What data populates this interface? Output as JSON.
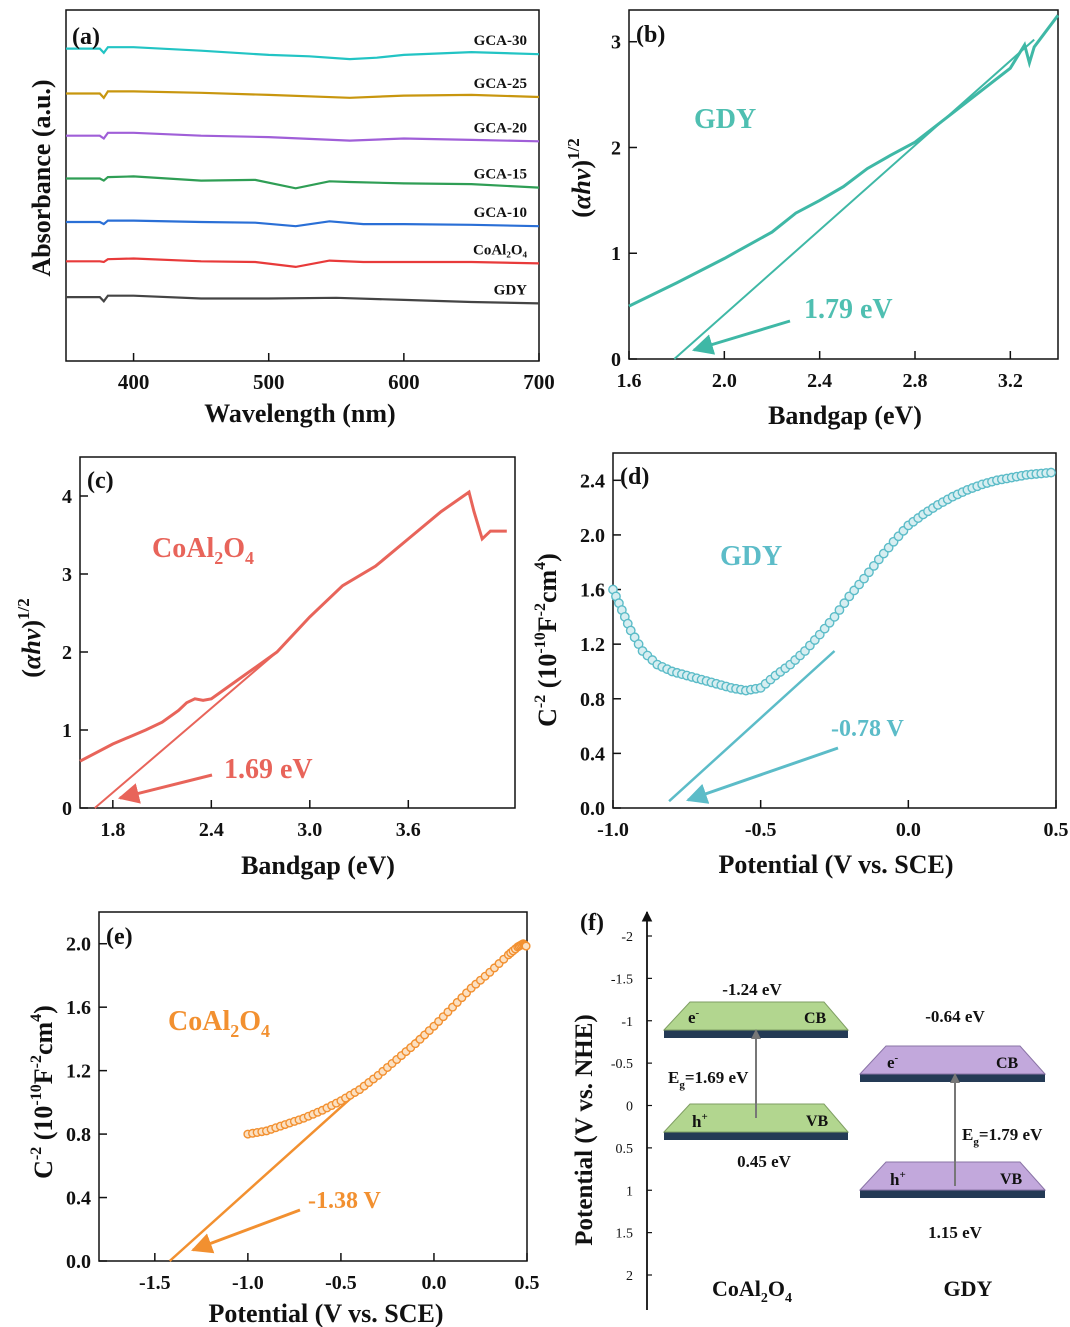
{
  "figure": {
    "panels": {
      "a": {
        "letter": "(a)",
        "xlabel": "Wavelength (nm)",
        "ylabel": "Absorbance (a.u.)"
      },
      "b": {
        "letter": "(b)",
        "xlabel": "Bandgap (eV)",
        "ylabel_pre": "(",
        "ylabel_sym": "αhν",
        "ylabel_post": ")",
        "ylabel_sup": "1/2",
        "inlabel": "GDY",
        "annotation": "1.79 eV"
      },
      "c": {
        "letter": "(c)",
        "xlabel": "Bandgap (eV)",
        "ylabel_pre": "(",
        "ylabel_sym": "αhν",
        "ylabel_post": ")",
        "ylabel_sup": "1/2",
        "inlabel_main": "CoAl",
        "inlabel_sub1": "2",
        "inlabel_mid": "O",
        "inlabel_sub2": "4",
        "annotation": "1.69 eV"
      },
      "d": {
        "letter": "(d)",
        "xlabel": "Potential (V vs. SCE)",
        "ylabel_a": "C",
        "ylabel_a_sup": "-2",
        "ylabel_b": " (10",
        "ylabel_b_sup": "-10",
        "ylabel_c": "F",
        "ylabel_c_sup": "-2",
        "ylabel_d": "cm",
        "ylabel_d_sup": "4",
        "ylabel_e": ")",
        "inlabel": "GDY",
        "annotation": "-0.78 V"
      },
      "e": {
        "letter": "(e)",
        "xlabel": "Potential (V vs. SCE)",
        "ylabel_a": "C",
        "ylabel_a_sup": "-2",
        "ylabel_b": " (10",
        "ylabel_b_sup": "-10",
        "ylabel_c": "F",
        "ylabel_c_sup": "-2",
        "ylabel_d": "cm",
        "ylabel_d_sup": "4",
        "ylabel_e": ")",
        "inlabel_main": "CoAl",
        "inlabel_sub1": "2",
        "inlabel_mid": "O",
        "inlabel_sub2": "4",
        "annotation": "-1.38 V"
      },
      "f": {
        "letter": "(f)",
        "ylabel": "Potential (V vs. NHE)",
        "left": {
          "name_main": "CoAl",
          "name_sub1": "2",
          "name_mid": "O",
          "name_sub2": "4",
          "cb_value": "-1.24 eV",
          "vb_value": "0.45 eV",
          "cb_label": "CB",
          "vb_label": "VB",
          "e_label": "e",
          "e_sup": "-",
          "h_label": "h",
          "h_sup": "+",
          "eg_label": "E",
          "eg_sub": "g",
          "eg_value": "=1.69 eV"
        },
        "right": {
          "name": "GDY",
          "cb_value": "-0.64 eV",
          "vb_value": "1.15 eV",
          "cb_label": "CB",
          "vb_label": "VB",
          "e_label": "e",
          "e_sup": "-",
          "h_label": "h",
          "h_sup": "+",
          "eg_label": "E",
          "eg_sub": "g",
          "eg_value": "=1.79 eV"
        }
      }
    }
  },
  "chart_data": [
    {
      "type": "line",
      "panel": "a",
      "xlabel": "Wavelength (nm)",
      "ylabel": "Absorbance (a.u.)",
      "xlim": [
        350,
        700
      ],
      "xticks": [
        400,
        500,
        600,
        700
      ],
      "yticks": [],
      "series_style": "stacked curves, offset vertically",
      "series": [
        {
          "name": "GCA-30",
          "color": "#22c4c4",
          "x": [
            350,
            375,
            378,
            381,
            400,
            450,
            500,
            530,
            560,
            580,
            600,
            650,
            700
          ],
          "y": [
            5.45,
            5.45,
            5.39,
            5.47,
            5.47,
            5.42,
            5.36,
            5.34,
            5.3,
            5.32,
            5.36,
            5.4,
            5.37
          ]
        },
        {
          "name": "GCA-25",
          "color": "#c8960e",
          "x": [
            350,
            375,
            378,
            381,
            400,
            450,
            500,
            560,
            600,
            650,
            700
          ],
          "y": [
            4.81,
            4.81,
            4.75,
            4.84,
            4.84,
            4.82,
            4.79,
            4.75,
            4.78,
            4.79,
            4.76
          ]
        },
        {
          "name": "GCA-20",
          "color": "#a05fd8",
          "x": [
            350,
            375,
            378,
            381,
            400,
            450,
            500,
            560,
            600,
            650,
            700
          ],
          "y": [
            4.21,
            4.21,
            4.17,
            4.25,
            4.25,
            4.21,
            4.19,
            4.14,
            4.17,
            4.15,
            4.13
          ]
        },
        {
          "name": "GCA-15",
          "color": "#2f9e55",
          "x": [
            350,
            375,
            378,
            381,
            400,
            450,
            490,
            520,
            545,
            560,
            600,
            650,
            700
          ],
          "y": [
            3.6,
            3.6,
            3.57,
            3.62,
            3.63,
            3.57,
            3.58,
            3.46,
            3.56,
            3.55,
            3.53,
            3.52,
            3.47
          ]
        },
        {
          "name": "GCA-10",
          "color": "#2a6fd6",
          "x": [
            350,
            375,
            378,
            381,
            400,
            450,
            490,
            520,
            545,
            570,
            600,
            650,
            700
          ],
          "y": [
            2.98,
            2.98,
            2.95,
            3.0,
            3.0,
            2.98,
            2.97,
            2.92,
            2.99,
            2.95,
            2.95,
            2.94,
            2.92
          ]
        },
        {
          "name": "CoAl₂O₄",
          "color": "#e83a3a",
          "x": [
            350,
            375,
            378,
            381,
            400,
            450,
            490,
            520,
            545,
            570,
            600,
            650,
            700
          ],
          "y": [
            2.42,
            2.42,
            2.41,
            2.45,
            2.46,
            2.42,
            2.41,
            2.34,
            2.43,
            2.41,
            2.41,
            2.41,
            2.39
          ]
        },
        {
          "name": "GDY",
          "color": "#444444",
          "x": [
            350,
            375,
            378,
            381,
            400,
            450,
            500,
            550,
            600,
            650,
            700
          ],
          "y": [
            1.91,
            1.91,
            1.85,
            1.93,
            1.93,
            1.89,
            1.89,
            1.9,
            1.87,
            1.84,
            1.82
          ]
        }
      ]
    },
    {
      "type": "line",
      "panel": "b",
      "xlabel": "Bandgap (eV)",
      "ylim": [
        0,
        3.3
      ],
      "xlim": [
        1.6,
        3.4
      ],
      "xticks": [
        1.6,
        2.0,
        2.4,
        2.8,
        3.2
      ],
      "yticks": [
        0,
        1,
        2,
        3
      ],
      "series": [
        {
          "name": "GDY",
          "color": "#3fb8a6",
          "x": [
            1.6,
            1.8,
            2.0,
            2.2,
            2.3,
            2.4,
            2.5,
            2.6,
            2.7,
            2.8,
            3.0,
            3.2,
            3.26,
            3.28,
            3.3,
            3.4
          ],
          "y": [
            0.5,
            0.72,
            0.95,
            1.2,
            1.38,
            1.5,
            1.63,
            1.8,
            1.93,
            2.05,
            2.4,
            2.75,
            2.97,
            2.8,
            2.95,
            3.25
          ]
        }
      ],
      "tangent": {
        "x": [
          1.79,
          3.3
        ],
        "y": [
          0,
          3.02
        ]
      },
      "annotation": {
        "text": "1.79 eV",
        "x": 1.79
      }
    },
    {
      "type": "line",
      "panel": "c",
      "xlabel": "Bandgap (eV)",
      "ylim": [
        0,
        4.5
      ],
      "xlim": [
        1.6,
        4.25
      ],
      "xticks": [
        1.8,
        2.4,
        3.0,
        3.6
      ],
      "yticks": [
        0,
        1,
        2,
        3,
        4
      ],
      "series": [
        {
          "name": "CoAl₂O₄",
          "color": "#e8645a",
          "x": [
            1.6,
            1.8,
            2.0,
            2.1,
            2.2,
            2.25,
            2.3,
            2.35,
            2.4,
            2.5,
            2.6,
            2.8,
            3.0,
            3.2,
            3.4,
            3.6,
            3.8,
            3.97,
            4.0,
            4.05,
            4.1,
            4.2
          ],
          "y": [
            0.6,
            0.82,
            1.0,
            1.1,
            1.25,
            1.35,
            1.4,
            1.38,
            1.4,
            1.55,
            1.7,
            2.0,
            2.45,
            2.85,
            3.1,
            3.45,
            3.8,
            4.05,
            3.8,
            3.45,
            3.55,
            3.55
          ]
        }
      ],
      "tangent": {
        "x": [
          1.69,
          2.8
        ],
        "y": [
          0,
          2.0
        ]
      },
      "annotation": {
        "text": "1.69 eV",
        "x": 1.69
      }
    },
    {
      "type": "scatter",
      "panel": "d",
      "xlabel": "Potential (V vs. SCE)",
      "xlim": [
        -1.0,
        0.5
      ],
      "ylim": [
        0,
        2.6
      ],
      "xticks": [
        -1.0,
        -0.5,
        0.0,
        0.5
      ],
      "yticks": [
        0.0,
        0.4,
        0.8,
        1.2,
        1.6,
        2.0,
        2.4
      ],
      "series": [
        {
          "name": "GDY",
          "color": "#5cbcc8",
          "x": [
            -1.0,
            -0.97,
            -0.94,
            -0.9,
            -0.85,
            -0.8,
            -0.75,
            -0.7,
            -0.65,
            -0.6,
            -0.55,
            -0.5,
            -0.45,
            -0.4,
            -0.35,
            -0.3,
            -0.25,
            -0.2,
            -0.15,
            -0.1,
            -0.05,
            0.0,
            0.05,
            0.1,
            0.15,
            0.2,
            0.25,
            0.3,
            0.35,
            0.4,
            0.45,
            0.5
          ],
          "y": [
            1.6,
            1.45,
            1.3,
            1.15,
            1.05,
            1.0,
            0.97,
            0.94,
            0.91,
            0.88,
            0.86,
            0.88,
            0.97,
            1.05,
            1.15,
            1.27,
            1.4,
            1.55,
            1.68,
            1.82,
            1.95,
            2.07,
            2.15,
            2.22,
            2.28,
            2.33,
            2.37,
            2.4,
            2.42,
            2.44,
            2.45,
            2.46
          ]
        }
      ],
      "tangent": {
        "x": [
          -0.81,
          -0.25
        ],
        "y": [
          0.05,
          1.15
        ]
      },
      "annotation": {
        "text": "-0.78 V",
        "x": -0.78
      }
    },
    {
      "type": "scatter",
      "panel": "e",
      "xlabel": "Potential (V vs. SCE)",
      "xlim": [
        -1.8,
        0.5
      ],
      "ylim": [
        0,
        2.2
      ],
      "xticks": [
        -1.5,
        -1.0,
        -0.5,
        0.0,
        0.5
      ],
      "yticks": [
        0.0,
        0.4,
        0.8,
        1.2,
        1.6,
        2.0
      ],
      "series": [
        {
          "name": "CoAl₂O₄",
          "color": "#f29030",
          "x": [
            -1.0,
            -0.9,
            -0.8,
            -0.7,
            -0.6,
            -0.5,
            -0.4,
            -0.3,
            -0.2,
            -0.1,
            0.0,
            0.1,
            0.2,
            0.3,
            0.4,
            0.45,
            0.48,
            0.5
          ],
          "y": [
            0.8,
            0.82,
            0.86,
            0.9,
            0.95,
            1.01,
            1.08,
            1.17,
            1.27,
            1.37,
            1.48,
            1.6,
            1.72,
            1.82,
            1.93,
            1.98,
            2.0,
            1.98
          ]
        }
      ],
      "tangent": {
        "x": [
          -1.42,
          0.05
        ],
        "y": [
          0,
          1.55
        ]
      },
      "annotation": {
        "text": "-1.38 V",
        "x": -1.38
      }
    },
    {
      "type": "diagram",
      "panel": "f",
      "ylabel": "Potential (V vs. NHE)",
      "ylim": [
        2.5,
        -2.3
      ],
      "yticks": [
        "-2",
        "-1.5",
        "-1",
        "-0.5",
        "0",
        "0.5",
        "1",
        "1.5",
        "2"
      ],
      "bands": [
        {
          "material": "CoAl₂O₄",
          "cb": -1.24,
          "vb": 0.45,
          "eg": 1.69,
          "color": "#b2d68f"
        },
        {
          "material": "GDY",
          "cb": -0.64,
          "vb": 1.15,
          "eg": 1.79,
          "color": "#c2a8dc"
        }
      ]
    }
  ]
}
